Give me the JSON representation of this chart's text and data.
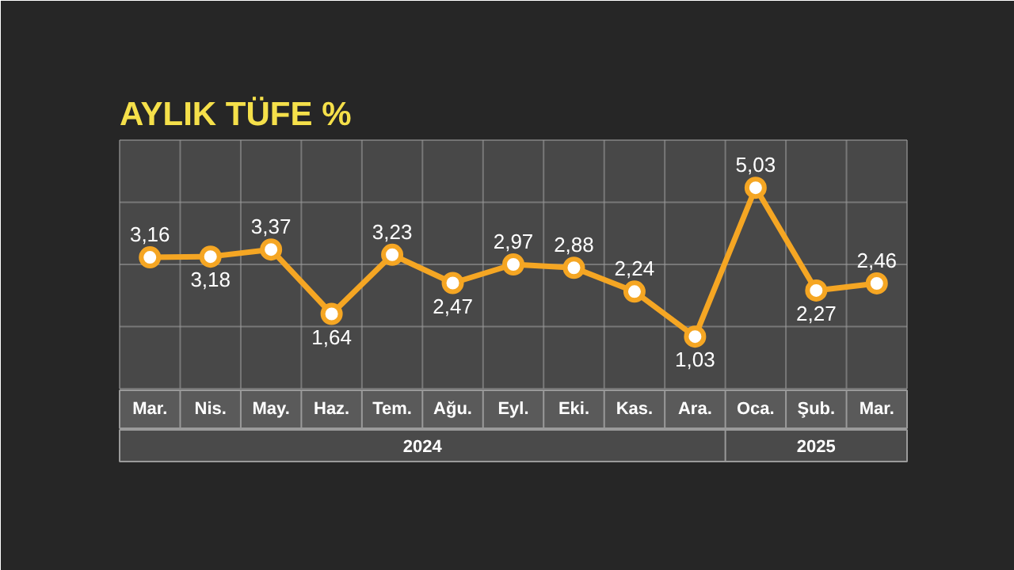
{
  "chart_data": {
    "type": "line",
    "title": "AYLIK TÜFE %",
    "categories": [
      "Mar.",
      "Nis.",
      "May.",
      "Haz.",
      "Tem.",
      "Ağu.",
      "Eyl.",
      "Eki.",
      "Kas.",
      "Ara.",
      "Oca.",
      "Şub.",
      "Mar."
    ],
    "values": [
      3.16,
      3.18,
      3.37,
      1.64,
      3.23,
      2.47,
      2.97,
      2.88,
      2.24,
      1.03,
      5.03,
      2.27,
      2.46
    ],
    "value_labels": [
      "3,16",
      "3,18",
      "3,37",
      "1,64",
      "3,23",
      "2,47",
      "2,97",
      "2,88",
      "2,24",
      "1,03",
      "5,03",
      "2,27",
      "2,46"
    ],
    "color": "#f5a623",
    "marker": "circle",
    "grid": true,
    "annotations": [
      "2024",
      "2025"
    ]
  }
}
